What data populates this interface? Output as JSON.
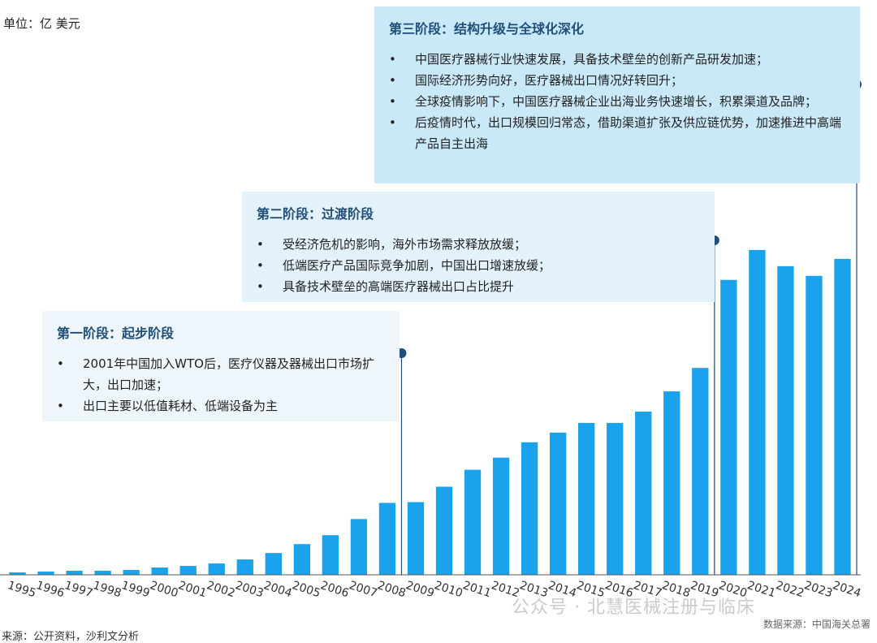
{
  "unit_label": "单位：亿 美元",
  "phases": [
    {
      "title": "第一阶段：起步阶段",
      "bullets": [
        "2001年中国加入WTO后，医疗仪器及器械出口市场扩大，出口加速；",
        "出口主要以低值耗材、低端设备为主"
      ]
    },
    {
      "title": "第二阶段：过渡阶段",
      "bullets": [
        "受经济危机的影响，海外市场需求释放放缓；",
        "低端医疗产品国际竞争加剧，中国出口增速放缓；",
        "具备技术壁垒的高端医疗器械出口占比提升"
      ]
    },
    {
      "title": "第三阶段：结构升级与全球化深化",
      "bullets": [
        "中国医疗器械行业快速发展，具备技术壁垒的创新产品研发加速；",
        "国际经济形势向好，医疗器械出口情况好转回升；",
        "全球疫情影响下，中国医疗器械企业出海业务快速增长，积累渠道及品牌；",
        "后疫情时代，出口规模回归常态，借助渠道扩张及供应链优势，加速推进中高端产品自主出海"
      ]
    }
  ],
  "source_left": "来源：公开资料，沙利文分析",
  "source_right": "数据来源：中国海关总署",
  "watermark": "公众号 · 北慧医械注册与临床",
  "colors": {
    "bar": "#1aa3ec",
    "marker": "#1f4e79",
    "axis": "#555555"
  },
  "chart_data": {
    "type": "bar",
    "categories": [
      "1995",
      "1996",
      "1997",
      "1998",
      "1999",
      "2000",
      "2001",
      "2002",
      "2003",
      "2004",
      "2005",
      "2006",
      "2007",
      "2008",
      "2009",
      "2010",
      "2011",
      "2012",
      "2013",
      "2014",
      "2015",
      "2016",
      "2017",
      "2018",
      "2019",
      "2020",
      "2021",
      "2022",
      "2023",
      "2024"
    ],
    "values": [
      3,
      4,
      5,
      5,
      6,
      9,
      11,
      14,
      19,
      27,
      38,
      49,
      69,
      89,
      90,
      109,
      130,
      145,
      164,
      176,
      188,
      188,
      202,
      227,
      256,
      365,
      402,
      382,
      370,
      391
    ],
    "ylabel": "单位：亿 美元",
    "ylim": [
      0,
      420
    ],
    "grid": false,
    "phase_markers": [
      {
        "phase": 1,
        "after_category": "2008"
      },
      {
        "phase": 2,
        "after_category": "2019"
      },
      {
        "phase": 3,
        "after_category": "2024"
      }
    ]
  }
}
